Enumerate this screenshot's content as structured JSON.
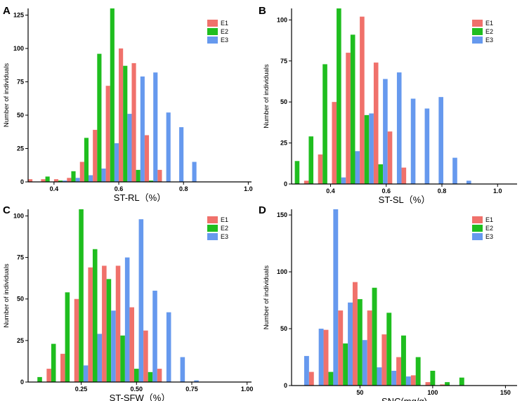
{
  "colors": {
    "E1": "#F0716B",
    "E2": "#1FBE1F",
    "E3": "#6699EE"
  },
  "chart_data": [
    {
      "panel": "A",
      "type": "bar",
      "title": "",
      "xlabel": "ST-RL（%）",
      "ylabel": "Number of individuals",
      "xlim": [
        0.32,
        1.01
      ],
      "ylim": [
        0,
        130
      ],
      "xticks": [
        0.4,
        0.6,
        0.8,
        1.0
      ],
      "xtick_labels": [
        "0.4",
        "0.6",
        "0.8",
        "1.0"
      ],
      "yticks": [
        0,
        25,
        50,
        75,
        100,
        125
      ],
      "bin_width": 0.04,
      "legend": [
        "E1",
        "E2",
        "E3"
      ],
      "legend_position": "top-right",
      "bins": [
        0.34,
        0.38,
        0.42,
        0.46,
        0.5,
        0.54,
        0.58,
        0.62,
        0.66,
        0.7,
        0.74,
        0.78,
        0.82,
        0.86,
        0.9,
        0.94,
        0.98
      ],
      "series": [
        {
          "name": "E1",
          "values": [
            2,
            2,
            2,
            3,
            15,
            39,
            72,
            100,
            89,
            35,
            9,
            0,
            0,
            0,
            0,
            0,
            0
          ]
        },
        {
          "name": "E2",
          "values": [
            0,
            4,
            1,
            8,
            33,
            96,
            130,
            87,
            9,
            1,
            0,
            0,
            0,
            0,
            0,
            0,
            0
          ]
        },
        {
          "name": "E3",
          "values": [
            0,
            0,
            1,
            3,
            5,
            10,
            29,
            51,
            79,
            82,
            52,
            41,
            15,
            0,
            0,
            0,
            0
          ]
        }
      ]
    },
    {
      "panel": "B",
      "type": "bar",
      "title": "",
      "xlabel": "ST-SL（%）",
      "ylabel": "Number of individuals",
      "xlim": [
        0.26,
        1.07
      ],
      "ylim": [
        0,
        107
      ],
      "xticks": [
        0.4,
        0.6,
        0.8,
        1.0
      ],
      "xtick_labels": [
        "0.4",
        "0.6",
        "0.8",
        "1.0"
      ],
      "yticks": [
        0,
        25,
        50,
        75,
        100
      ],
      "bin_width": 0.05,
      "legend": [
        "E1",
        "E2",
        "E3"
      ],
      "legend_position": "top-right",
      "bins": [
        0.28,
        0.33,
        0.38,
        0.43,
        0.48,
        0.53,
        0.58,
        0.63,
        0.68,
        0.73,
        0.78,
        0.83,
        0.88,
        0.93,
        0.98,
        1.03
      ],
      "series": [
        {
          "name": "E1",
          "values": [
            0,
            2,
            18,
            50,
            80,
            102,
            74,
            32,
            10,
            0,
            0,
            0,
            0,
            0,
            0,
            0
          ]
        },
        {
          "name": "E2",
          "values": [
            14,
            29,
            73,
            107,
            91,
            42,
            12,
            0,
            0,
            0,
            0,
            0,
            0,
            0,
            0,
            0
          ]
        },
        {
          "name": "E3",
          "values": [
            0,
            0,
            0,
            4,
            20,
            43,
            64,
            68,
            52,
            46,
            53,
            16,
            2,
            0,
            0,
            0
          ]
        }
      ]
    },
    {
      "panel": "C",
      "type": "bar",
      "title": "",
      "xlabel": "ST-SFW（%）",
      "ylabel": "Number of individuals",
      "xlim": [
        0.01,
        1.02
      ],
      "ylim": [
        0,
        104
      ],
      "xticks": [
        0.25,
        0.5,
        0.75,
        1.0
      ],
      "xtick_labels": [
        "0.25",
        "0.50",
        "0.75",
        "1.00"
      ],
      "yticks": [
        0,
        25,
        50,
        75,
        100
      ],
      "bin_width": 0.0625,
      "legend": [
        "E1",
        "E2",
        "E3"
      ],
      "legend_position": "top-right",
      "bins": [
        0.0625,
        0.125,
        0.1875,
        0.25,
        0.3125,
        0.375,
        0.4375,
        0.5,
        0.5625,
        0.625,
        0.6875,
        0.75,
        0.8125,
        0.875,
        0.9375,
        1.0
      ],
      "series": [
        {
          "name": "E1",
          "values": [
            0,
            8,
            17,
            50,
            69,
            70,
            70,
            45,
            31,
            8,
            0,
            0,
            0,
            0,
            0,
            0
          ]
        },
        {
          "name": "E2",
          "values": [
            3,
            23,
            54,
            104,
            80,
            62,
            28,
            8,
            6,
            0,
            0,
            0,
            0,
            0,
            0,
            0
          ]
        },
        {
          "name": "E3",
          "values": [
            0,
            0,
            0,
            10,
            29,
            43,
            75,
            98,
            55,
            42,
            15,
            1,
            0,
            0,
            0,
            0
          ]
        }
      ]
    },
    {
      "panel": "D",
      "type": "bar",
      "title": "",
      "xlabel": "SNC(mg/g)",
      "ylabel": "Number of individuals",
      "xlim": [
        3,
        158
      ],
      "ylim": [
        0,
        155
      ],
      "xticks": [
        50,
        100,
        150
      ],
      "xtick_labels": [
        "50",
        "100",
        "150"
      ],
      "yticks": [
        0,
        50,
        100,
        150
      ],
      "bin_width": 10,
      "legend": [
        "E1",
        "E2",
        "E3"
      ],
      "legend_position": "top-right",
      "bins": [
        10,
        20,
        30,
        40,
        50,
        60,
        70,
        80,
        90,
        100,
        110,
        120,
        130,
        140,
        150
      ],
      "series": [
        {
          "name": "E1",
          "values": [
            0,
            12,
            49,
            66,
            91,
            66,
            45,
            25,
            9,
            3,
            1,
            0,
            0,
            0,
            0
          ]
        },
        {
          "name": "E2",
          "values": [
            0,
            0,
            12,
            37,
            76,
            86,
            64,
            44,
            25,
            13,
            3,
            7,
            0,
            0,
            0
          ]
        },
        {
          "name": "E3",
          "values": [
            26,
            50,
            155,
            73,
            40,
            16,
            13,
            8,
            0,
            0,
            0,
            0,
            0,
            0,
            0
          ]
        }
      ]
    }
  ]
}
